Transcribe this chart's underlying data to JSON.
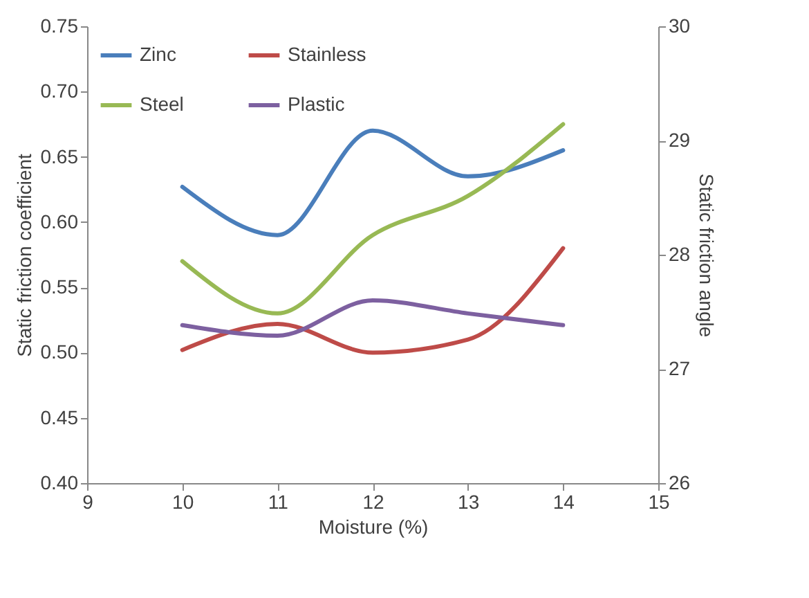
{
  "chart_data": {
    "type": "line",
    "xlabel": "Moisture (%)",
    "ylabel": "Static friction coefficient",
    "y2label": "Static friction angle",
    "x": [
      10,
      11,
      12,
      13,
      14
    ],
    "series": [
      {
        "name": "Zinc",
        "color": "#4a7ebb",
        "values": [
          0.627,
          0.59,
          0.67,
          0.635,
          0.655
        ]
      },
      {
        "name": "Stainless",
        "color": "#be4b48",
        "values": [
          0.502,
          0.522,
          0.5,
          0.51,
          0.58
        ]
      },
      {
        "name": "Steel",
        "color": "#98b954",
        "values": [
          0.57,
          0.53,
          0.59,
          0.62,
          0.675
        ]
      },
      {
        "name": "Plastic",
        "color": "#7d60a0",
        "values": [
          0.521,
          0.513,
          0.54,
          0.53,
          0.521
        ]
      }
    ],
    "xlim": [
      9,
      15
    ],
    "xticks": [
      9,
      10,
      11,
      12,
      13,
      14,
      15
    ],
    "ylim": [
      0.4,
      0.75
    ],
    "yticks": [
      {
        "value": 0.4,
        "label": "0.40"
      },
      {
        "value": 0.45,
        "label": "0.45"
      },
      {
        "value": 0.5,
        "label": "0.50"
      },
      {
        "value": 0.55,
        "label": "0.55"
      },
      {
        "value": 0.6,
        "label": "0.60"
      },
      {
        "value": 0.65,
        "label": "0.65"
      },
      {
        "value": 0.7,
        "label": "0.70"
      },
      {
        "value": 0.75,
        "label": "0.75"
      }
    ],
    "y2lim": [
      26,
      30
    ],
    "y2ticks": [
      26,
      27,
      28,
      29,
      30
    ],
    "grid": false,
    "legend": "top left",
    "marker": "none",
    "line_style": "solid"
  }
}
